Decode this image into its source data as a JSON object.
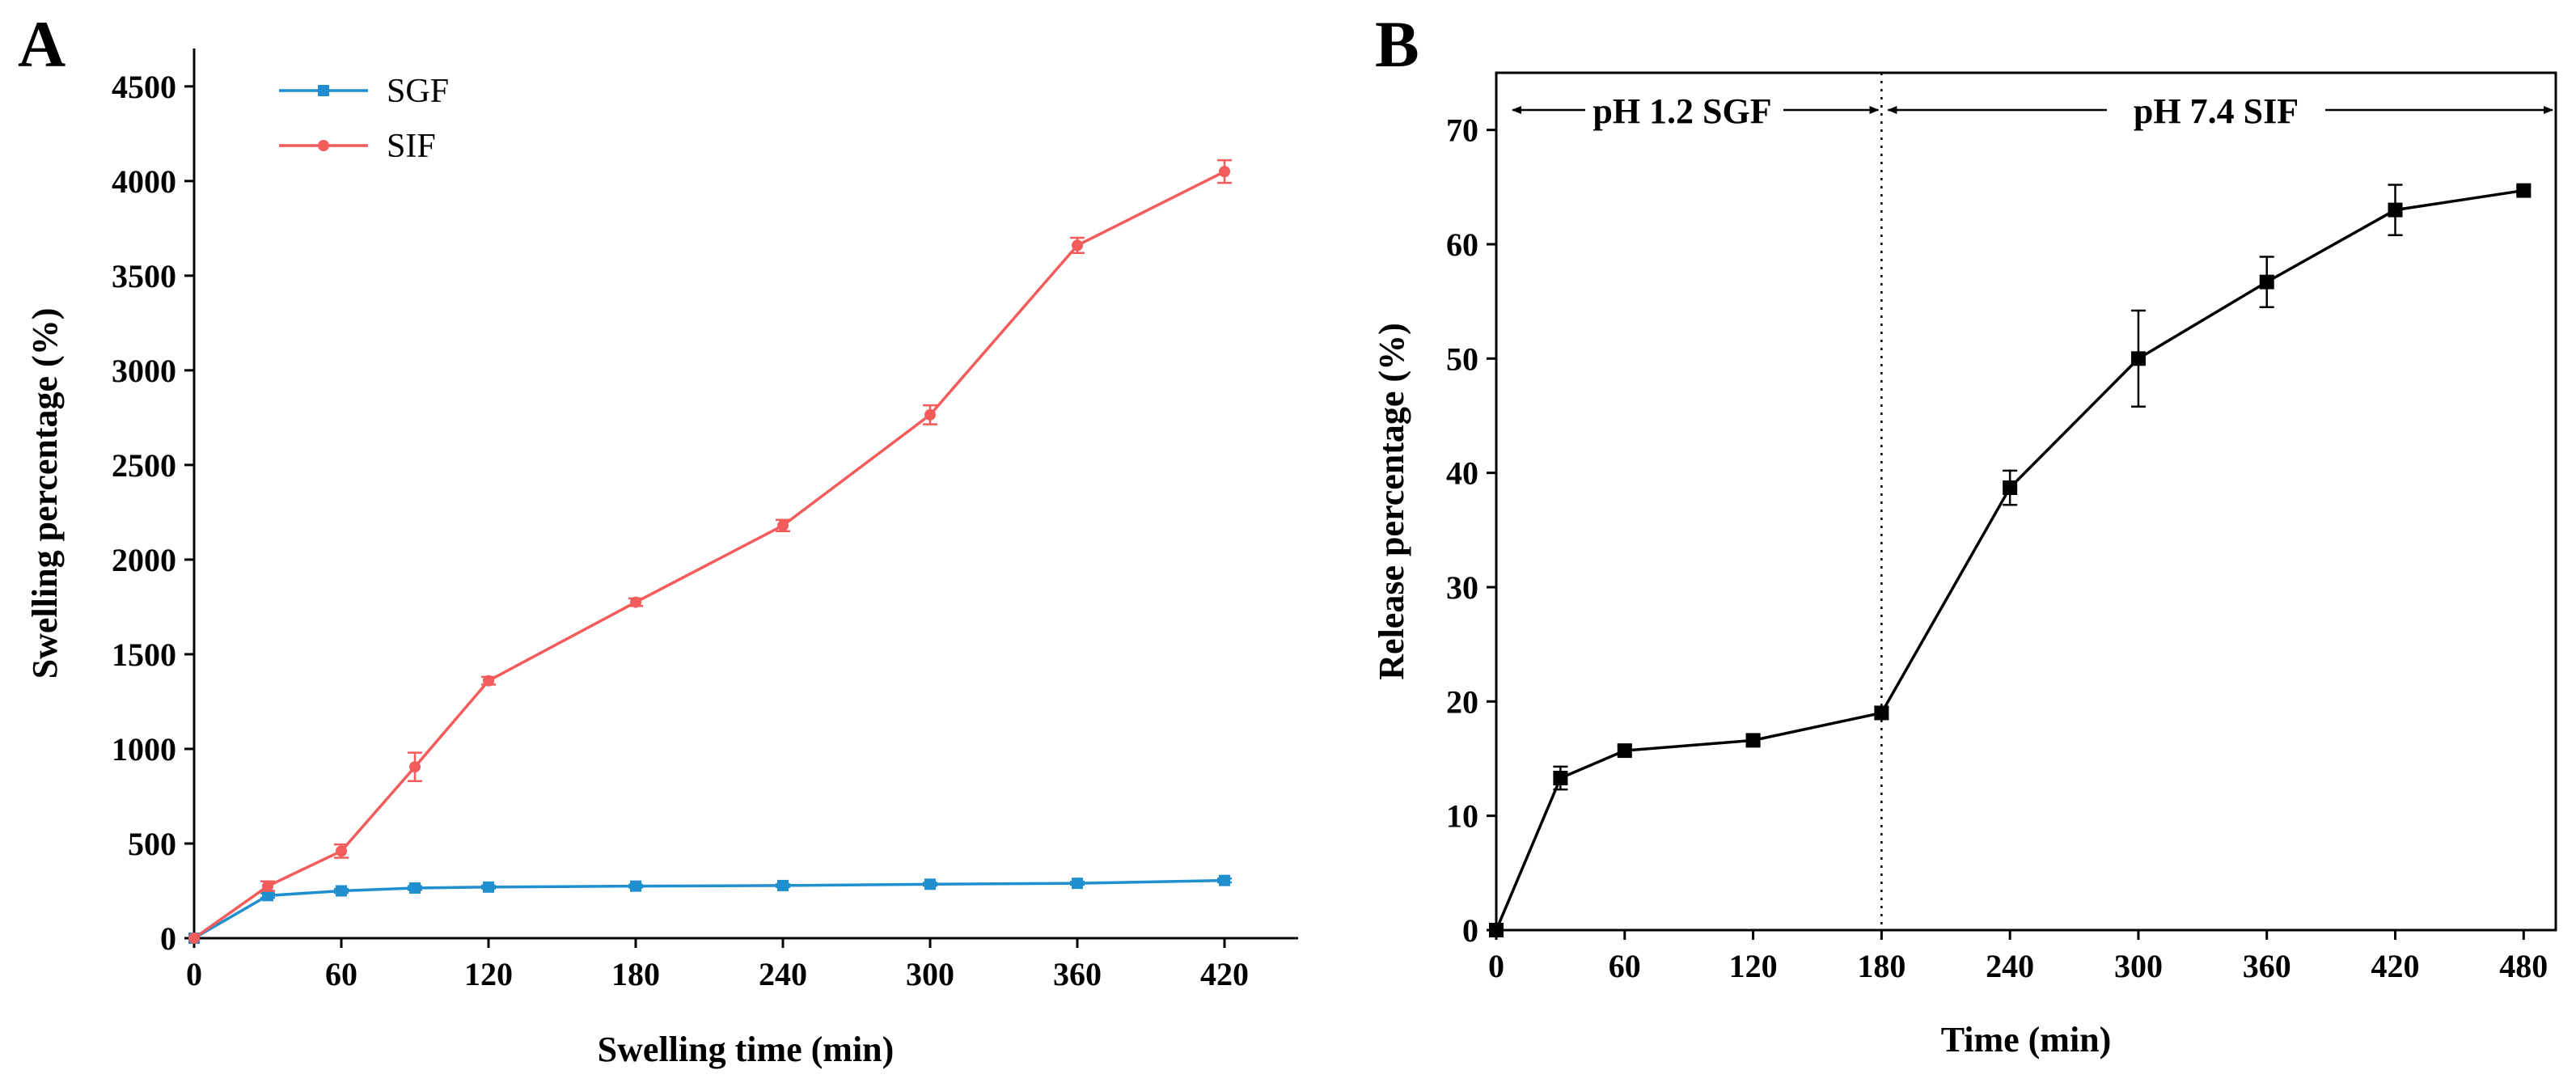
{
  "chart_data": [
    {
      "panel": "A",
      "type": "line",
      "title": "",
      "xlabel": "Swelling time (min)",
      "ylabel": "Swelling percentage (%)",
      "xlim": [
        0,
        450
      ],
      "ylim": [
        0,
        4700
      ],
      "xticks": [
        0,
        60,
        120,
        180,
        240,
        300,
        360,
        420
      ],
      "yticks": [
        0,
        500,
        1000,
        1500,
        2000,
        2500,
        3000,
        3500,
        4000,
        4500
      ],
      "legend_position": "top-left",
      "series": [
        {
          "name": "SGF",
          "color": "#1f8fcf",
          "marker": "square",
          "x": [
            0,
            30,
            60,
            90,
            120,
            180,
            240,
            300,
            360,
            420
          ],
          "y": [
            0,
            225,
            250,
            265,
            270,
            275,
            278,
            285,
            290,
            305
          ],
          "err": [
            0,
            12,
            10,
            10,
            8,
            8,
            8,
            8,
            8,
            10
          ]
        },
        {
          "name": "SIF",
          "color": "#f45b5b",
          "marker": "circle",
          "x": [
            0,
            30,
            60,
            90,
            120,
            180,
            240,
            300,
            360,
            420
          ],
          "y": [
            0,
            275,
            460,
            905,
            1360,
            1775,
            2180,
            2765,
            3660,
            4050
          ],
          "err": [
            0,
            25,
            35,
            75,
            20,
            20,
            30,
            50,
            40,
            60
          ]
        }
      ]
    },
    {
      "panel": "B",
      "type": "line",
      "title": "",
      "xlabel": "Time (min)",
      "ylabel": "Release percentage (%)",
      "xlim": [
        0,
        495
      ],
      "ylim": [
        0,
        75
      ],
      "xticks": [
        0,
        60,
        120,
        180,
        240,
        300,
        360,
        420,
        480
      ],
      "yticks": [
        0,
        10,
        20,
        30,
        40,
        50,
        60,
        70
      ],
      "divider_x": 180,
      "annotations": [
        "pH 1.2 SGF",
        "pH 7.4 SIF"
      ],
      "series": [
        {
          "name": "Release",
          "color": "#000000",
          "marker": "square",
          "x": [
            0,
            30,
            60,
            120,
            180,
            240,
            300,
            360,
            420,
            480
          ],
          "y": [
            0,
            13.3,
            15.7,
            16.6,
            19.0,
            38.7,
            50.0,
            56.7,
            63.0,
            64.7
          ],
          "err": [
            0,
            1.0,
            0.4,
            0.4,
            0.5,
            1.5,
            4.2,
            2.2,
            2.2,
            0.3
          ]
        }
      ]
    }
  ]
}
